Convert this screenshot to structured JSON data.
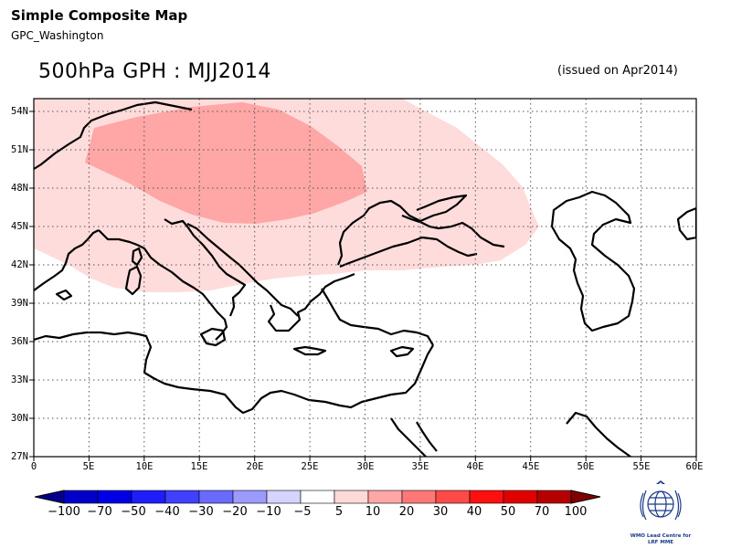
{
  "header": {
    "app_title": "Simple Composite Map",
    "source": "GPC_Washington",
    "map_title": "500hPa GPH : MJJ2014",
    "issued": "(issued on Apr2014)"
  },
  "map": {
    "lon_labels": [
      "0",
      "5E",
      "10E",
      "15E",
      "20E",
      "25E",
      "30E",
      "35E",
      "40E",
      "45E",
      "50E",
      "55E",
      "60E"
    ],
    "lat_labels": [
      "54N",
      "51N",
      "48N",
      "45N",
      "42N",
      "39N",
      "36N",
      "33N",
      "30N",
      "27N"
    ],
    "lon_range": [
      0,
      60
    ],
    "lat_range": [
      27,
      55
    ],
    "grid": "dotted",
    "anomaly_regions": [
      {
        "name": "light positive anomaly",
        "category": "5 to 10",
        "color": "#ffdcdc"
      },
      {
        "name": "moderate positive anomaly",
        "category": "10 to 20",
        "color": "#ffa6a6"
      }
    ]
  },
  "colorbar": {
    "labels": [
      "−100",
      "−70",
      "−50",
      "−40",
      "−30",
      "−20",
      "−10",
      "−5",
      "5",
      "10",
      "20",
      "30",
      "40",
      "50",
      "70",
      "100"
    ],
    "colors": [
      "#00008c",
      "#0000c8",
      "#0000e6",
      "#1e1efa",
      "#4040ff",
      "#6a6aff",
      "#9a9aff",
      "#d4d4ff",
      "#ffffff",
      "#ffd8d8",
      "#ffa6a6",
      "#ff7878",
      "#ff4a4a",
      "#ff1010",
      "#e00000",
      "#b40000",
      "#800000"
    ]
  },
  "logo": {
    "line1": "WMO Lead Centre for",
    "line2": "LRF MME"
  }
}
